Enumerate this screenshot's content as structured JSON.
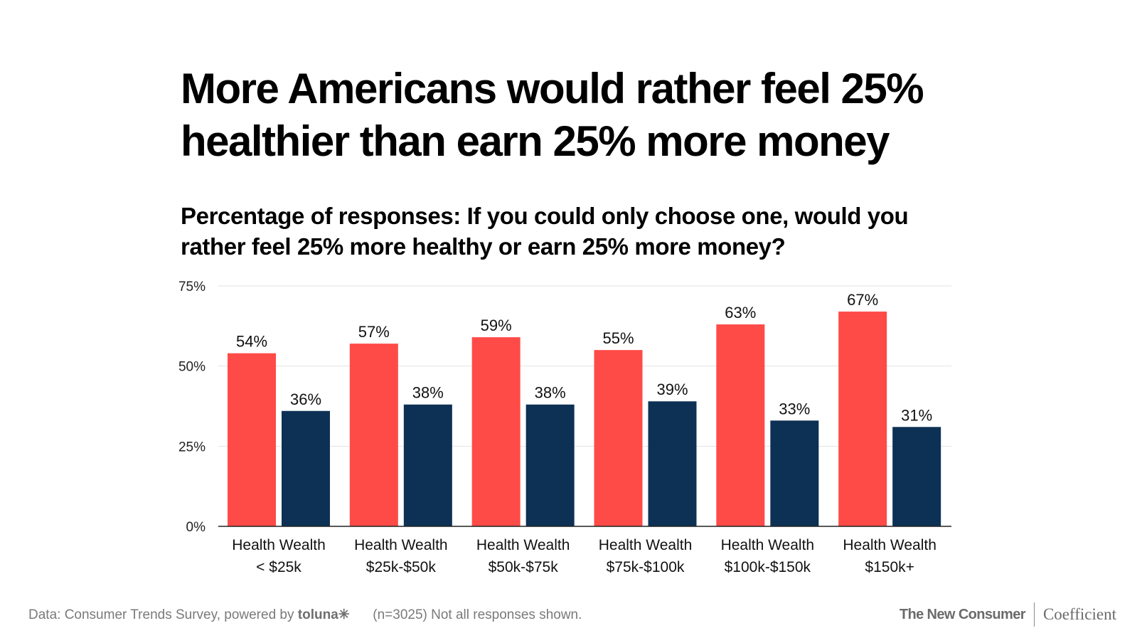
{
  "title_line1": "More Americans would rather feel 25%",
  "title_line2": "healthier than earn 25% more money",
  "subtitle_line1": "Percentage of responses: If you could only choose one, would you",
  "subtitle_line2": "rather feel 25% more healthy or earn 25% more money?",
  "colors": {
    "health": "#ff4b47",
    "wealth": "#0d3155",
    "grid": "#e2e2e2",
    "axis": "#222222"
  },
  "chart_data": {
    "type": "bar",
    "title": "More Americans would rather feel 25% healthier than earn 25% more money",
    "xlabel": "",
    "ylabel": "",
    "ylim": [
      0,
      75
    ],
    "yticks": [
      0,
      25,
      50,
      75
    ],
    "ytick_labels": [
      "0%",
      "25%",
      "50%",
      "75%"
    ],
    "grid": true,
    "categories": [
      "< $25k",
      "$25k-$50k",
      "$50k-$75k",
      "$75k-$100k",
      "$100k-$150k",
      "$150k+"
    ],
    "series_label_row": "Health Wealth",
    "series": [
      {
        "name": "Health",
        "values": [
          54,
          57,
          59,
          55,
          63,
          67
        ]
      },
      {
        "name": "Wealth",
        "values": [
          36,
          38,
          38,
          39,
          33,
          31
        ]
      }
    ]
  },
  "footer": {
    "source_prefix": "Data: Consumer Trends Survey, powered by",
    "source_brand": "toluna✳",
    "note": "(n=3025) Not all responses shown.",
    "brand_left": "The New Consumer",
    "brand_right": "Coefficient"
  }
}
